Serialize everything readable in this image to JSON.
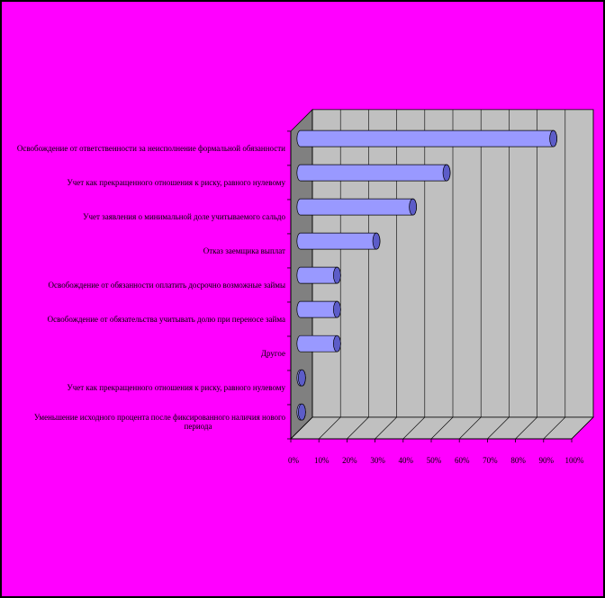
{
  "colors": {
    "background": "#ff00ff",
    "border": "#000000",
    "plot_wall": "#c0c0c0",
    "plot_side": "#808080",
    "bar": "#9999ff",
    "bar_dark": "#5c5cc8",
    "grid": "#000000"
  },
  "chart_data": {
    "type": "bar",
    "orientation": "horizontal",
    "style": "3d-cylinder",
    "title": "",
    "xlabel": "",
    "ylabel": "",
    "xlim": [
      0,
      100
    ],
    "grid": true,
    "legend": "none",
    "categories": [
      "Освобождение от ответственности за неисполнение формальной обязанности",
      "Учет как прекращенного отношения к риску, равного нулевому",
      "Учет заявления о минимальной доле учитываемого сальдо",
      "Отказ заемщика выплат",
      "Освобождение от обязанности оплатить досрочно возможные займы",
      "Освобождение от обязательства учитывать долю при переносе займа",
      "Другое",
      "Учет как прекращенного отношения к риску, равного нулевому",
      "Уменьшение исходного процента после фиксированного наличия нового периода"
    ],
    "values": [
      90,
      52,
      40,
      27,
      13,
      13,
      13,
      0.5,
      0.5
    ],
    "tick_labels": [
      "0%",
      "10%",
      "20%",
      "30%",
      "40%",
      "50%",
      "60%",
      "70%",
      "80%",
      "90%",
      "100%"
    ]
  }
}
